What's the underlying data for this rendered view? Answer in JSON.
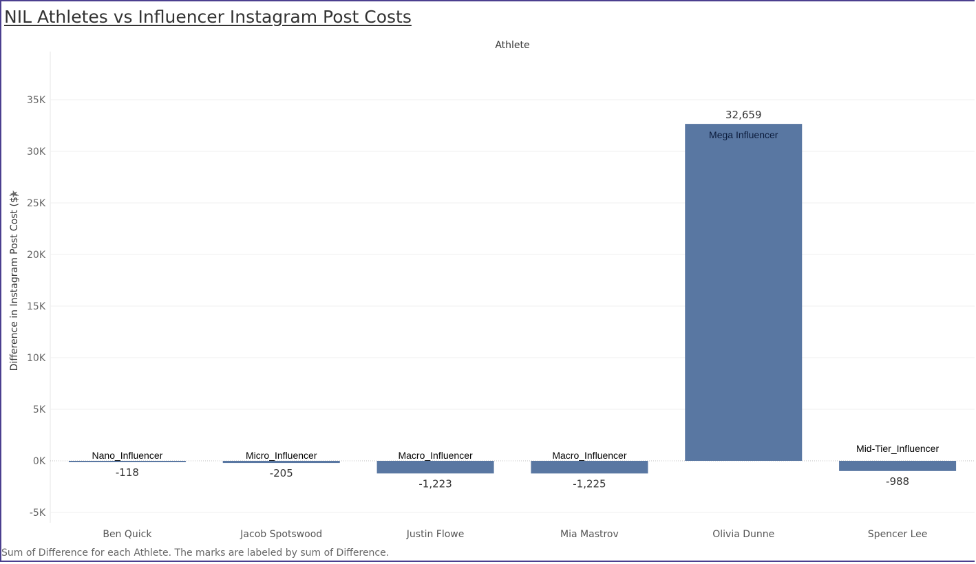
{
  "title": "NIL Athletes vs Influencer Instagram Post Costs",
  "footnote": "Sum of Difference for each Athlete.  The marks are labeled by sum of Difference.",
  "colors": {
    "bar": "#5977a2",
    "grid": "#efefef",
    "zero": "#bdbdbd",
    "frame": "#4b3f8f"
  },
  "chart_data": {
    "type": "bar",
    "x_header": "Athlete",
    "ylabel": "Difference in Instagram Post Cost ($)",
    "ylim": [
      -6000,
      39000
    ],
    "yticks": [
      -5000,
      0,
      5000,
      10000,
      15000,
      20000,
      25000,
      30000,
      35000
    ],
    "ytick_labels": [
      "-5K",
      "0K",
      "5K",
      "10K",
      "15K",
      "20K",
      "25K",
      "30K",
      "35K"
    ],
    "categories": [
      "Ben Quick",
      "Jacob Spotswood",
      "Justin Flowe",
      "Mia Mastrov",
      "Olivia Dunne",
      "Spencer Lee"
    ],
    "values": [
      -118,
      -205,
      -1223,
      -1225,
      32659,
      -988
    ],
    "value_labels": [
      "-118",
      "-205",
      "-1,223",
      "-1,225",
      "32,659",
      "-988"
    ],
    "tier_labels": [
      "Nano_Influencer",
      "Micro_Influencer",
      "Macro_Influencer",
      "Macro_Influencer",
      "Mega Influencer",
      "Mid-Tier_Influencer"
    ],
    "grid": true
  }
}
